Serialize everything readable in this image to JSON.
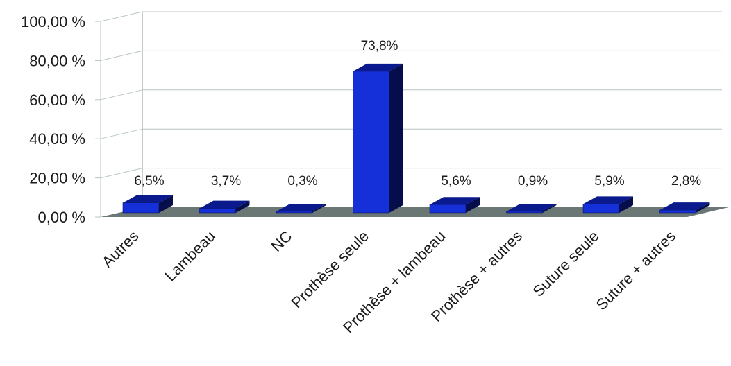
{
  "chart_data": {
    "type": "bar",
    "style": "3d-column",
    "categories": [
      "Autres",
      "Lambeau",
      "NC",
      "Prothèse seule",
      "Prothèse + lambeau",
      "Prothèse + autres",
      "Suture seule",
      "Suture + autres"
    ],
    "values": [
      6.5,
      3.7,
      0.3,
      73.8,
      5.6,
      0.9,
      5.9,
      2.8
    ],
    "data_labels": [
      "6,5%",
      "3,7%",
      "0,3%",
      "73,8%",
      "5,6%",
      "0,9%",
      "5,9%",
      "2,8%"
    ],
    "y_ticks": [
      0,
      20,
      40,
      60,
      80,
      100
    ],
    "y_tick_labels": [
      "0,00 %",
      "20,00 %",
      "40,00 %",
      "60,00 %",
      "80,00 %",
      "100,00 %"
    ],
    "ylim": [
      0,
      100
    ],
    "grid": true,
    "legend": "none",
    "colors": {
      "bar_front": "#1530d8",
      "bar_top": "#0a1a8c",
      "bar_side": "#050d4a",
      "floor": "#6b7775",
      "grid": "#b8c6c4",
      "wall": "#9aaaa8"
    }
  }
}
